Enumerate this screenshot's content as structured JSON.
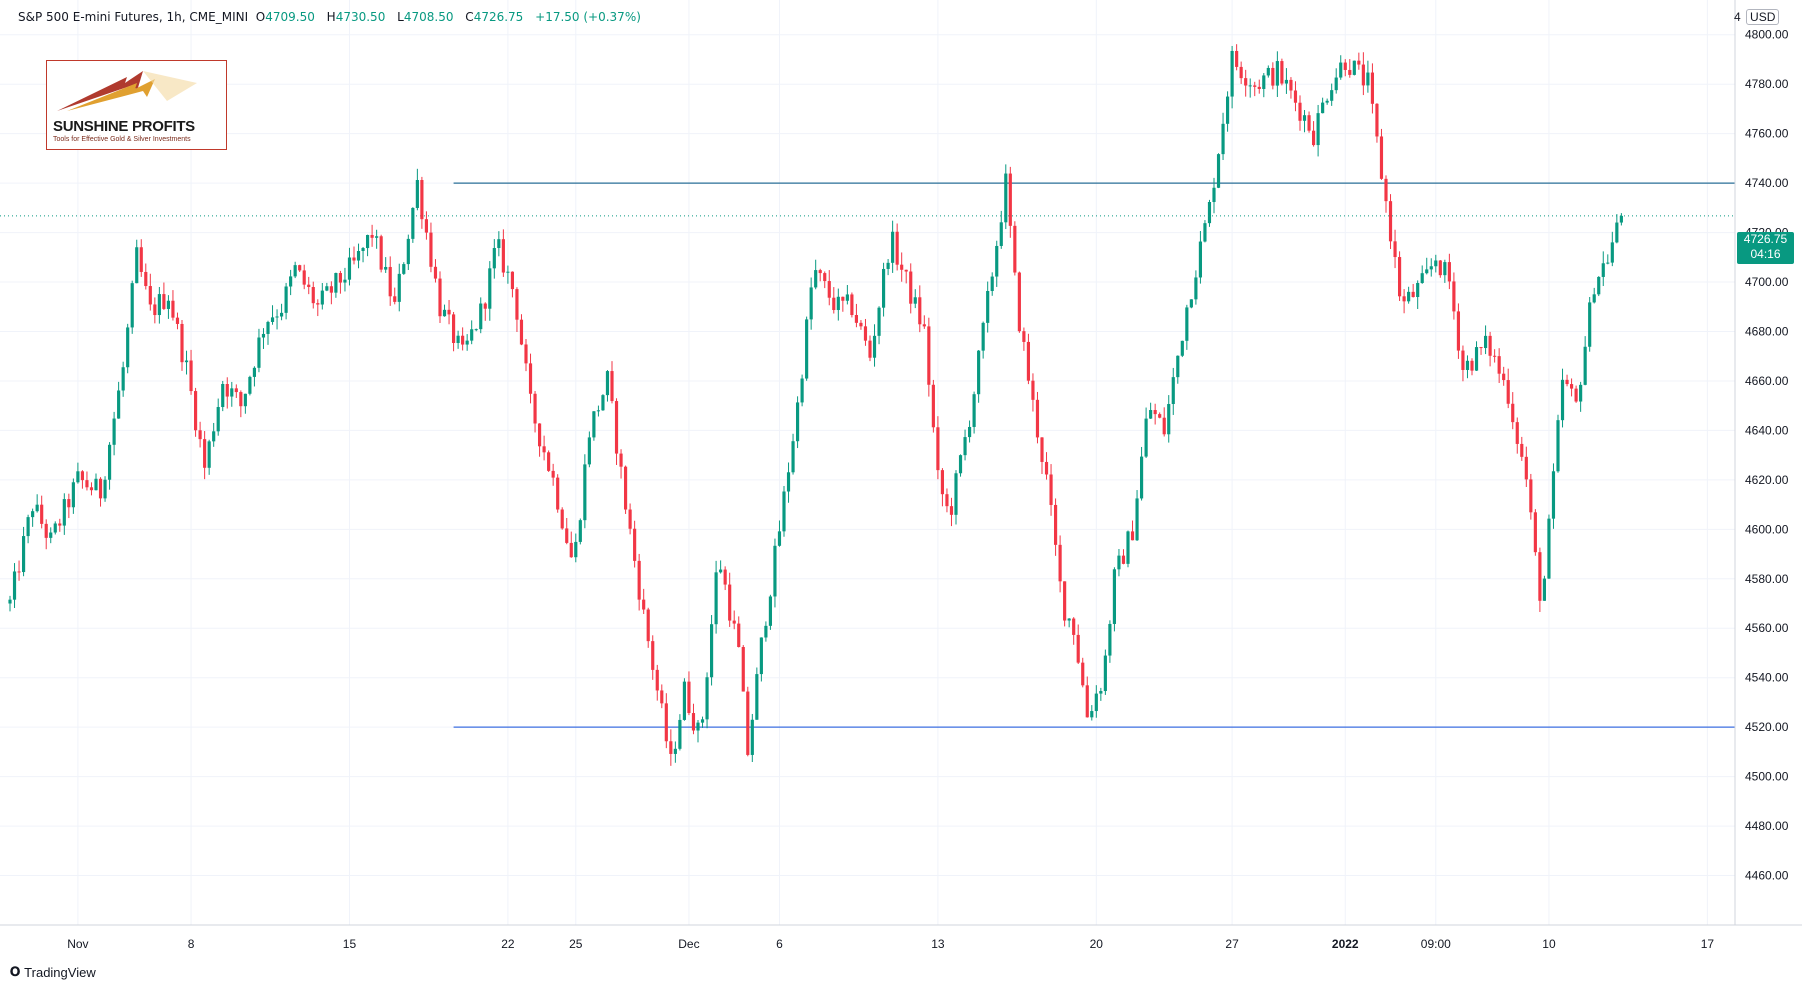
{
  "header": {
    "symbol": "S&P 500 E-mini Futures, 1h, CME_MINI",
    "open_label": "O",
    "open": "4709.50",
    "high_label": "H",
    "high": "4730.50",
    "low_label": "L",
    "low": "4708.50",
    "close_label": "C",
    "close": "4726.75",
    "change": "+17.50 (+0.37%)"
  },
  "logo": {
    "title": "SUNSHINE PROFITS",
    "tagline": "Tools for Effective Gold & Silver Investments"
  },
  "currency": {
    "prefix": "4",
    "code": "USD"
  },
  "last_price": {
    "value": "4726.75",
    "countdown": "04:16"
  },
  "watermark": {
    "text": "TradingView",
    "icon": "tradingview-logo-icon"
  },
  "colors": {
    "up": "#089981",
    "down": "#f23645",
    "resistance": "#2a6f97",
    "support": "#3d6fe0",
    "last_price": "#089981"
  },
  "chart_data": {
    "type": "candlestick",
    "timeframe": "1h",
    "ylim": [
      4440,
      4810
    ],
    "y_ticks": [
      "4460.00",
      "4480.00",
      "4500.00",
      "4520.00",
      "4540.00",
      "4560.00",
      "4580.00",
      "4600.00",
      "4620.00",
      "4640.00",
      "4660.00",
      "4680.00",
      "4700.00",
      "4720.00",
      "4740.00",
      "4760.00",
      "4780.00",
      "4800.00"
    ],
    "x_ticks": [
      "Nov",
      "8",
      "15",
      "22",
      "25",
      "Dec",
      "6",
      "13",
      "20",
      "27",
      "2022",
      "09:00",
      "10",
      "17"
    ],
    "x_tick_positions": [
      3,
      8,
      15,
      22,
      25,
      30,
      34,
      41,
      48,
      54,
      59,
      63,
      68,
      75
    ],
    "horizontal_lines": [
      {
        "name": "resistance",
        "value": 4740,
        "from_day": 19.6
      },
      {
        "name": "support",
        "value": 4520,
        "from_day": 19.6
      }
    ],
    "last_price": 4726.75,
    "path_days": [
      0.0,
      1.0,
      1.8,
      3.0,
      4.0,
      5.0,
      5.6,
      6.2,
      7.0,
      7.8,
      8.6,
      9.4,
      10.2,
      11.3,
      12.0,
      12.6,
      13.6,
      14.5,
      15.3,
      16.0,
      17.0,
      18.0,
      19.0,
      20.0,
      20.9,
      21.5,
      22.3,
      23.0,
      24.0,
      24.9,
      25.6,
      26.4,
      27.2,
      28.0,
      28.7,
      29.2,
      29.8,
      30.5,
      31.3,
      32.2,
      32.6,
      33.3,
      34.0,
      34.8,
      35.5,
      36.5,
      37.2,
      38.0,
      38.9,
      39.6,
      40.4,
      41.0,
      41.5,
      42.5,
      43.5,
      44.0,
      44.5,
      45.2,
      45.8,
      46.5,
      47.0,
      47.6,
      48.3,
      48.8,
      49.6,
      50.3,
      51.0,
      52.0,
      53.0,
      54.0,
      55.0,
      56.0,
      57.0,
      57.6,
      58.3,
      59.0,
      60.0,
      61.0,
      61.5,
      62.5,
      63.0,
      63.6,
      64.2,
      65.3,
      66.2,
      67.0,
      67.5,
      67.7,
      68.0,
      68.6,
      69.2,
      70.0,
      70.6,
      71.2
    ],
    "path_prices": [
      4570,
      4610,
      4595,
      4620,
      4615,
      4665,
      4710,
      4688,
      4695,
      4665,
      4625,
      4660,
      4650,
      4685,
      4690,
      4705,
      4690,
      4700,
      4708,
      4720,
      4690,
      4740,
      4690,
      4670,
      4690,
      4715,
      4695,
      4650,
      4620,
      4585,
      4640,
      4660,
      4610,
      4565,
      4530,
      4505,
      4535,
      4515,
      4590,
      4550,
      4510,
      4560,
      4600,
      4650,
      4705,
      4690,
      4690,
      4670,
      4718,
      4700,
      4680,
      4620,
      4605,
      4650,
      4710,
      4740,
      4690,
      4650,
      4620,
      4570,
      4560,
      4525,
      4540,
      4580,
      4600,
      4650,
      4640,
      4690,
      4730,
      4790,
      4780,
      4785,
      4770,
      4760,
      4780,
      4790,
      4780,
      4720,
      4690,
      4700,
      4710,
      4700,
      4665,
      4675,
      4655,
      4620,
      4580,
      4570,
      4600,
      4660,
      4650,
      4700,
      4710,
      4726.75
    ]
  }
}
